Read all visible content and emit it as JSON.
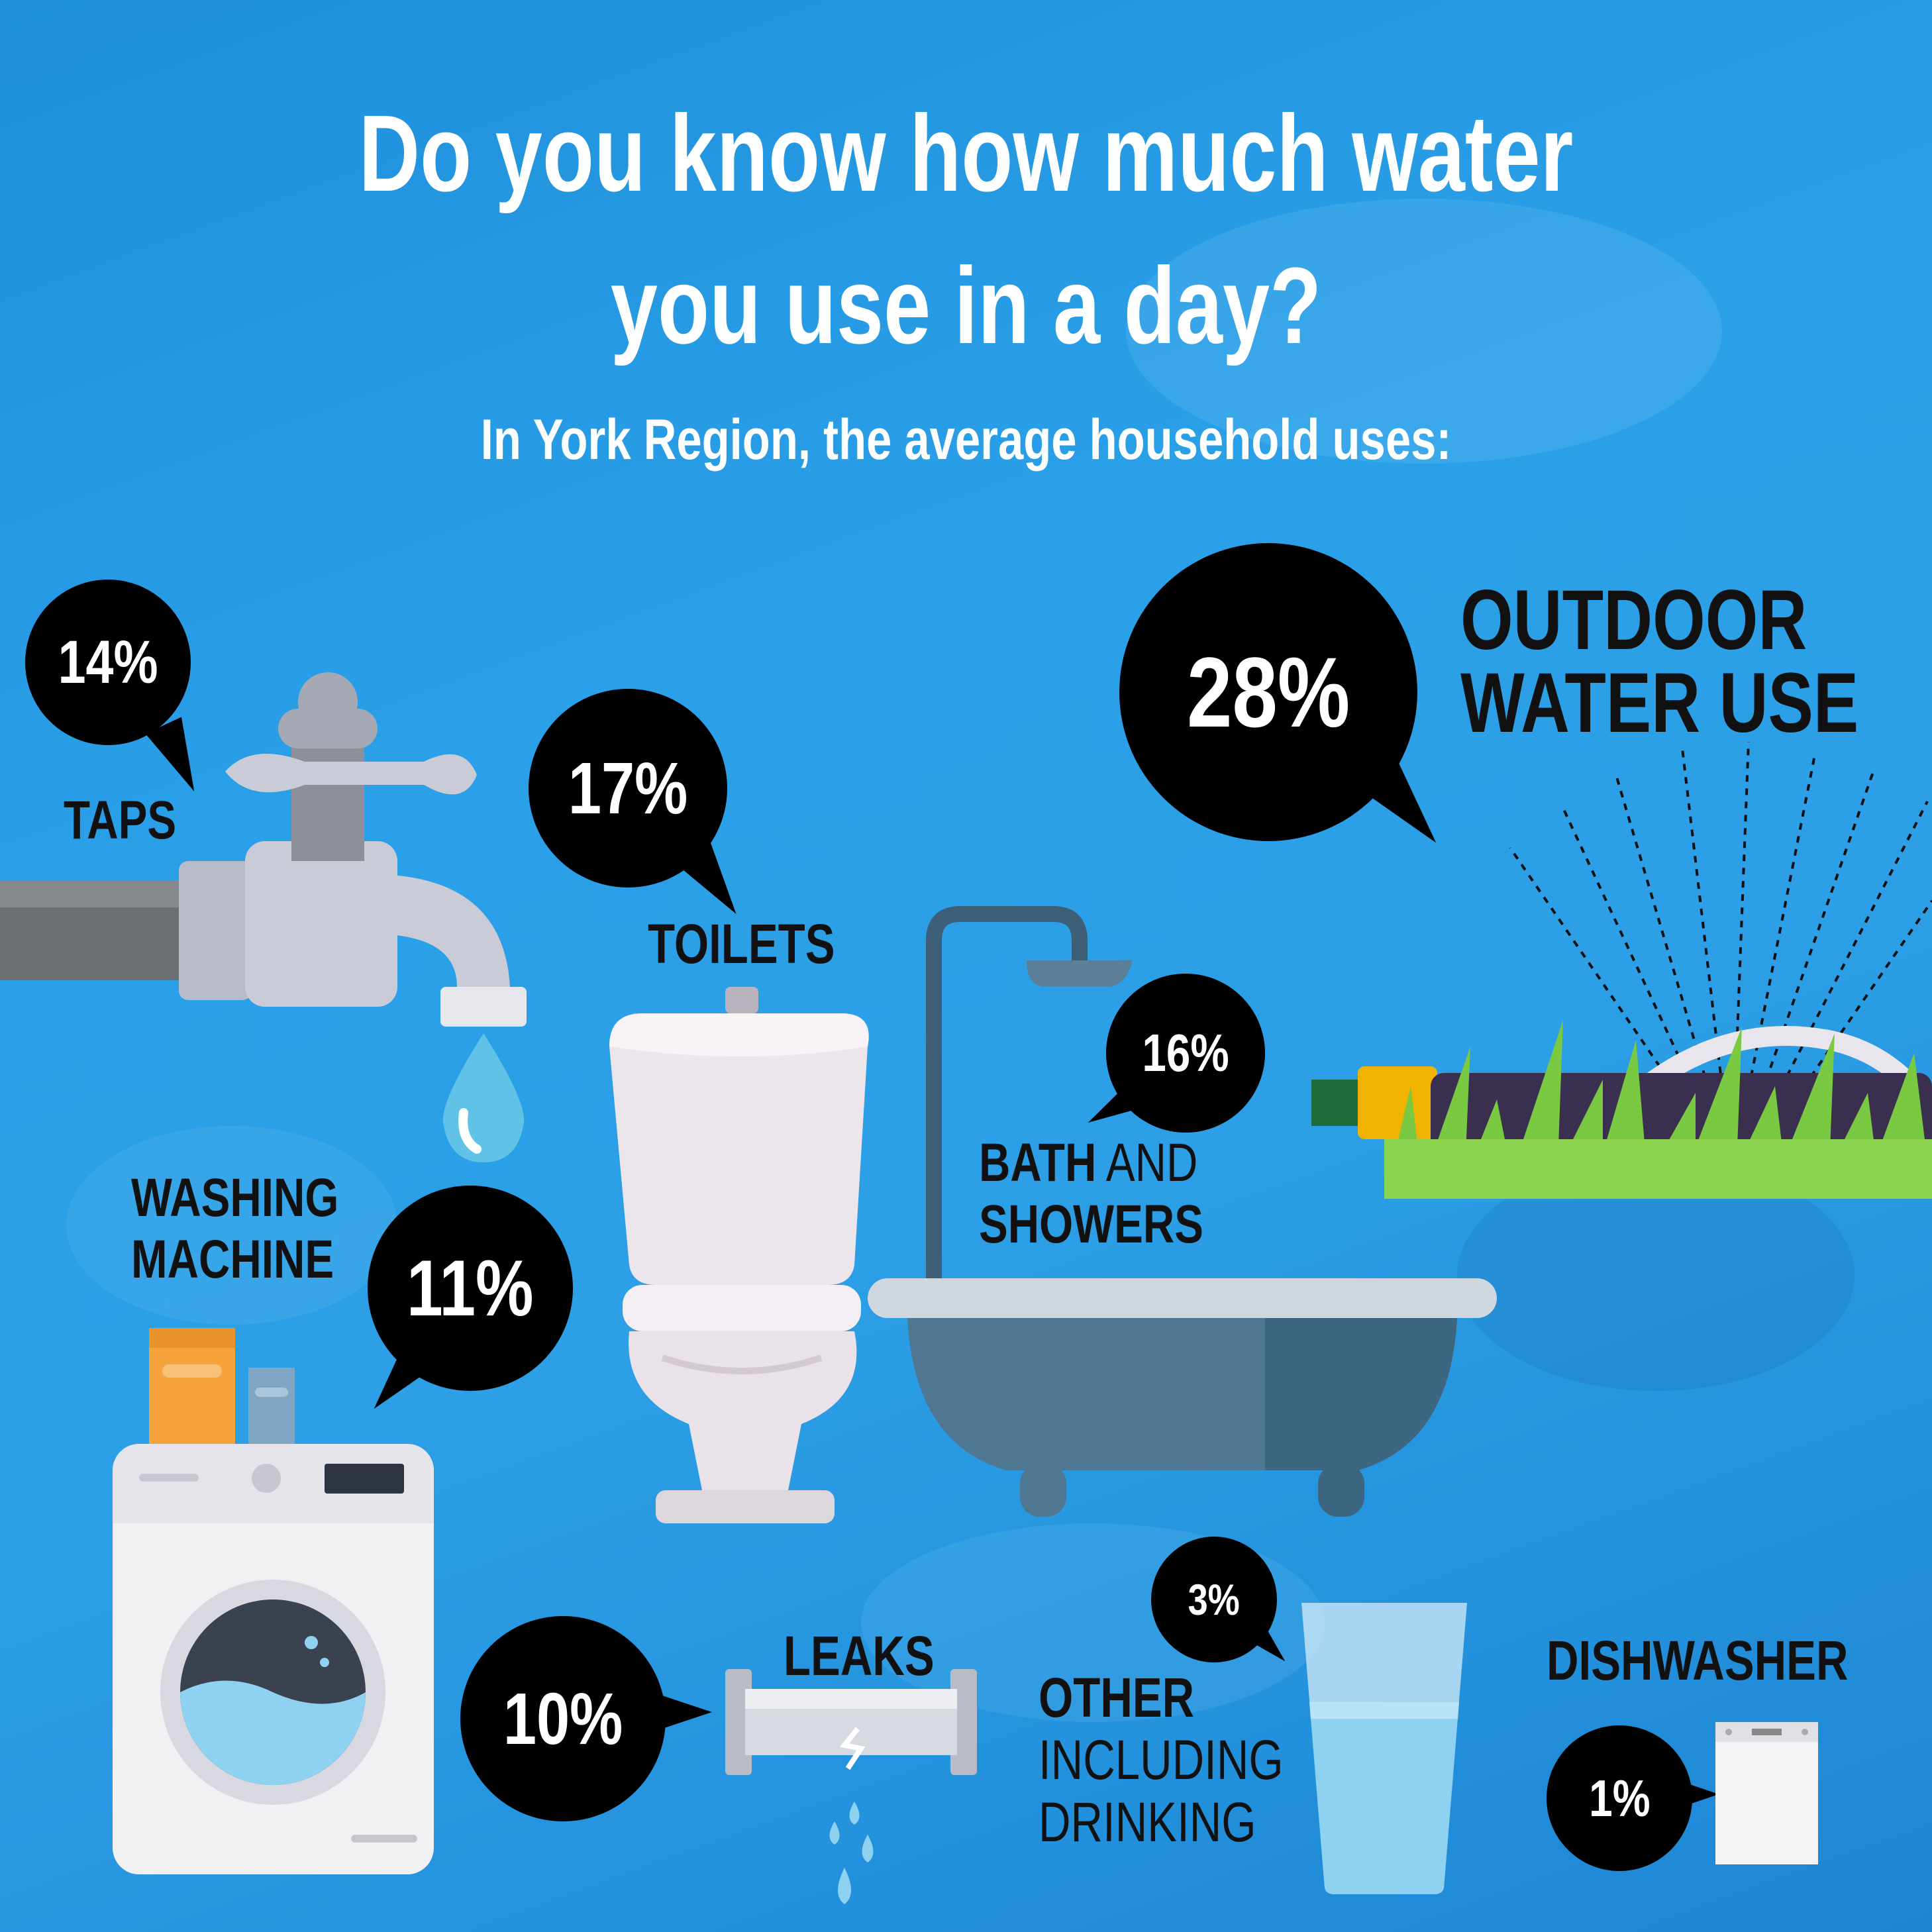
{
  "header": {
    "title_line1": "Do you know how much water",
    "title_line2": "you use in a day?",
    "subtitle": "In York Region, the average household uses:"
  },
  "items": {
    "taps": {
      "percent": "14%",
      "label": "TAPS"
    },
    "toilets": {
      "percent": "17%",
      "label": "TOILETS"
    },
    "outdoor": {
      "percent": "28%",
      "label_line1": "OUTDOOR",
      "label_line2": "WATER USE"
    },
    "bath": {
      "percent": "16%",
      "label_bold": "BATH",
      "label_rest": " AND",
      "label_line2": "SHOWERS"
    },
    "washing": {
      "percent": "11%",
      "label_line1": "WASHING",
      "label_line2": "MACHINE"
    },
    "leaks": {
      "percent": "10%",
      "label": "LEAKS"
    },
    "other": {
      "percent": "3%",
      "label_line1": "OTHER",
      "label_line2": "INCLUDING",
      "label_line3": "DRINKING"
    },
    "dishwasher": {
      "percent": "1%",
      "label": "DISHWASHER"
    }
  },
  "colors": {
    "background": "#2aa0e8",
    "bubble": "#000000",
    "text_dark": "#111111",
    "text_light": "#ffffff"
  },
  "icons": [
    "tap-icon",
    "water-drop-icon",
    "toilet-icon",
    "bathtub-icon",
    "shower-icon",
    "sprinkler-hose-icon",
    "grass-icon",
    "washing-machine-icon",
    "detergent-box-icon",
    "leaking-pipe-icon",
    "water-glass-icon",
    "dishwasher-icon"
  ]
}
